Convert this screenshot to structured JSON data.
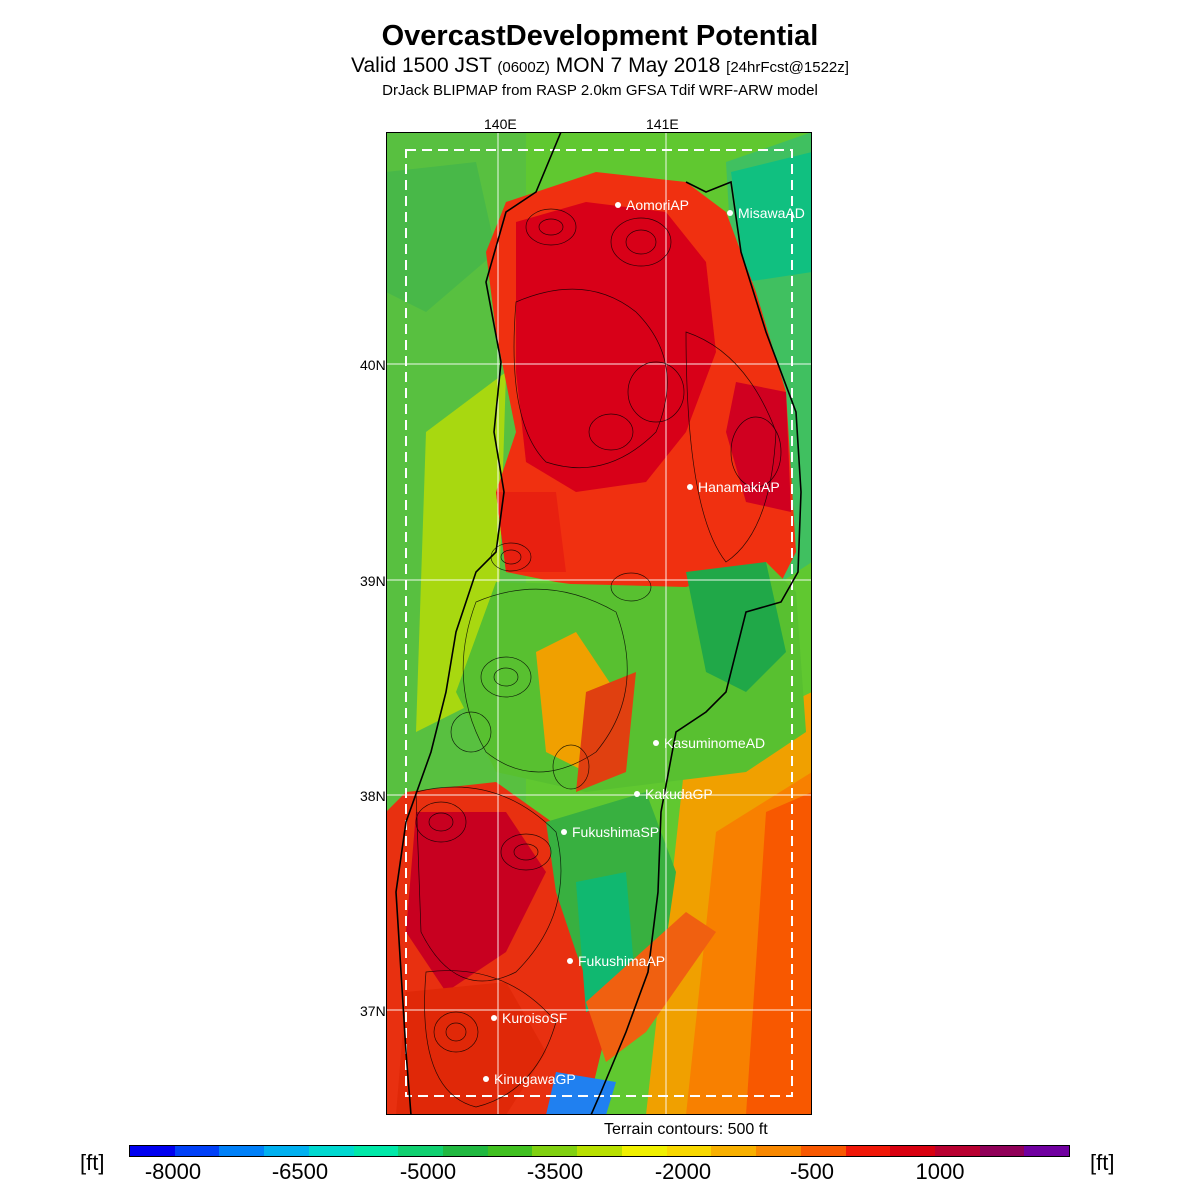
{
  "header": {
    "title": "OvercastDevelopment Potential",
    "valid_prefix": "Valid 1500 JST",
    "zulu": "(0600Z)",
    "date": "MON 7 May 2018",
    "forecast": "[24hrFcst@1522z]",
    "model": "DrJack BLIPMAP from RASP 2.0km GFSA Tdif WRF-ARW model"
  },
  "map": {
    "lon_labels": [
      "140E",
      "141E"
    ],
    "lat_labels": [
      "40N",
      "39N",
      "38N",
      "37N"
    ],
    "stations": [
      {
        "name": "AomoriAP"
      },
      {
        "name": "MisawaAD"
      },
      {
        "name": "HanamakiAP"
      },
      {
        "name": "KasuminomeAD"
      },
      {
        "name": "KakudaGP"
      },
      {
        "name": "FukushimaSP"
      },
      {
        "name": "FukushimaAP"
      },
      {
        "name": "KuroisoSF"
      },
      {
        "name": "KinugawaGP"
      }
    ],
    "terrain_note": "Terrain contours: 500 ft"
  },
  "colorbar": {
    "unit": "[ft]",
    "tick_labels": [
      "-8000",
      "-6500",
      "-5000",
      "-3500",
      "-2000",
      "-500",
      "1000"
    ],
    "colors": [
      "#0000f0",
      "#0040f8",
      "#0080f8",
      "#00b0f0",
      "#00d8d0",
      "#00e8a8",
      "#10d070",
      "#20b840",
      "#40c020",
      "#80d010",
      "#b8e000",
      "#f0f000",
      "#f8d800",
      "#f8b000",
      "#f88800",
      "#f85800",
      "#f01808",
      "#d80010",
      "#b80030",
      "#900058",
      "#7000a0"
    ]
  }
}
